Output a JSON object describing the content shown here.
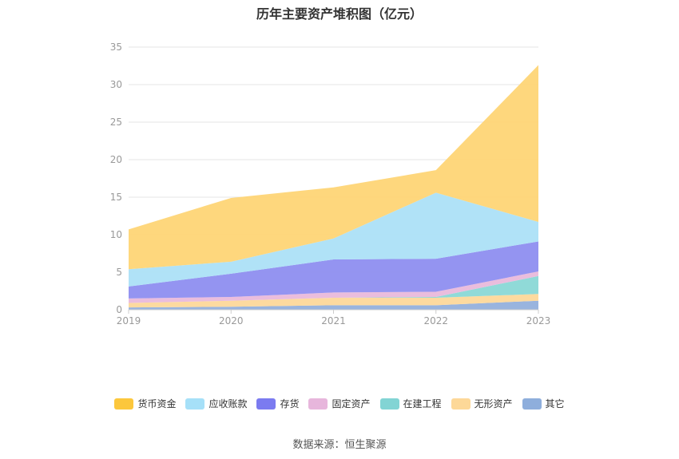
{
  "chart_data": {
    "type": "area",
    "stacked": true,
    "title": "历年主要资产堆积图（亿元）",
    "categories": [
      "2019",
      "2020",
      "2021",
      "2022",
      "2023"
    ],
    "ylim": [
      0,
      35
    ],
    "yticks": [
      0,
      5,
      10,
      15,
      20,
      25,
      30,
      35
    ],
    "grid": true,
    "legend_position": "bottom",
    "series": [
      {
        "name": "其它",
        "color": "#94b0dc",
        "values": [
          0.3,
          0.4,
          0.6,
          0.6,
          1.2
        ]
      },
      {
        "name": "无形资产",
        "color": "#fdd89a",
        "values": [
          0.6,
          0.8,
          1.0,
          1.0,
          0.9
        ]
      },
      {
        "name": "在建工程",
        "color": "#8ad8d6",
        "values": [
          0.0,
          0.0,
          0.0,
          0.1,
          2.4
        ]
      },
      {
        "name": "固定资产",
        "color": "#e9b9db",
        "values": [
          0.6,
          0.5,
          0.7,
          0.7,
          0.6
        ]
      },
      {
        "name": "存货",
        "color": "#8e8ef0",
        "values": [
          1.6,
          3.1,
          4.4,
          4.4,
          4.0
        ]
      },
      {
        "name": "应收账款",
        "color": "#ace0f7",
        "values": [
          2.3,
          1.6,
          2.8,
          8.8,
          2.6
        ]
      },
      {
        "name": "货币资金",
        "color": "#fed576",
        "values": [
          5.3,
          8.5,
          6.8,
          3.0,
          20.9
        ]
      }
    ],
    "legend": [
      {
        "name": "货币资金",
        "color": "#fcc73c"
      },
      {
        "name": "应收账款",
        "color": "#a6e0f8"
      },
      {
        "name": "存货",
        "color": "#7b7bf0"
      },
      {
        "name": "固定资产",
        "color": "#e7b6dc"
      },
      {
        "name": "在建工程",
        "color": "#82d4d4"
      },
      {
        "name": "无形资产",
        "color": "#fdd898"
      },
      {
        "name": "其它",
        "color": "#8eaedc"
      }
    ]
  },
  "source": "数据来源：恒生聚源"
}
